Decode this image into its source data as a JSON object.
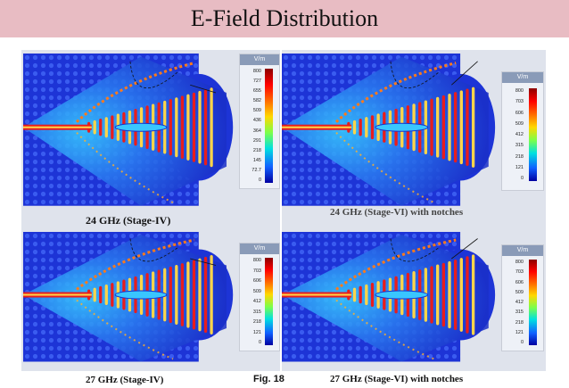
{
  "title": "E-Field Distribution",
  "figure_label": "Fig. 18",
  "colors": {
    "header_bg": "#e8bcc3",
    "panel_bg": "#dfe3ec",
    "field_bg": "#1f3fd8",
    "hot": "#e61e1e"
  },
  "panels": [
    {
      "id": "tl",
      "caption": "24 GHz (Stage-IV)",
      "unit": "V/m",
      "ticks": [
        "800",
        "727",
        "655",
        "582",
        "509",
        "436",
        "364",
        "291",
        "218",
        "145",
        "72.7",
        "0"
      ]
    },
    {
      "id": "tr",
      "caption": "24 GHz (Stage-VI) with notches",
      "unit": "V/m",
      "ticks": [
        "800",
        "703",
        "606",
        "509",
        "412",
        "315",
        "218",
        "121",
        "0"
      ]
    },
    {
      "id": "bl",
      "caption": "27 GHz (Stage-IV)",
      "unit": "V/m",
      "ticks": [
        "800",
        "703",
        "606",
        "509",
        "412",
        "315",
        "218",
        "121",
        "0"
      ]
    },
    {
      "id": "br",
      "caption": "27 GHz (Stage-VI) with notches",
      "unit": "V/m",
      "ticks": [
        "800",
        "703",
        "606",
        "509",
        "412",
        "315",
        "218",
        "121",
        "0"
      ]
    }
  ]
}
